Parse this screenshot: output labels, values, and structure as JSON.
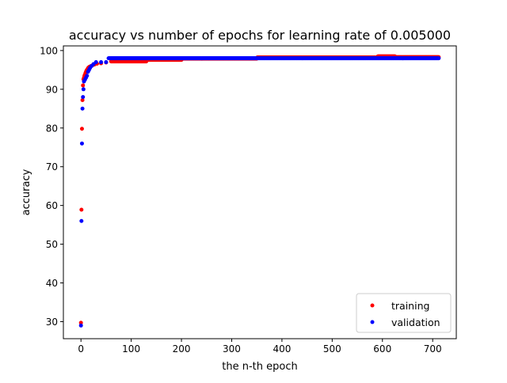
{
  "chart_data": {
    "type": "scatter",
    "title": "accuracy vs number of epochs for learning rate of 0.005000",
    "xlabel": "the n-th epoch",
    "ylabel": "accuracy",
    "xlim": [
      -35,
      747
    ],
    "ylim": [
      25.6,
      101.2
    ],
    "xticks": [
      0,
      100,
      200,
      300,
      400,
      500,
      600,
      700
    ],
    "yticks": [
      30,
      40,
      50,
      60,
      70,
      80,
      90,
      100
    ],
    "grid": false,
    "legend_position": "lower-right",
    "n_epochs": 713,
    "series": [
      {
        "name": "training",
        "color": "#ff0000",
        "marker": "dot",
        "early_points": [
          [
            0,
            29.7
          ],
          [
            1,
            58.9
          ],
          [
            2,
            79.8
          ],
          [
            3,
            87.2
          ],
          [
            4,
            91.0
          ],
          [
            5,
            92.6
          ],
          [
            6,
            93.0
          ],
          [
            7,
            93.5
          ],
          [
            8,
            93.8
          ],
          [
            9,
            94.2
          ],
          [
            10,
            94.5
          ],
          [
            11,
            94.8
          ],
          [
            12,
            95.0
          ],
          [
            13,
            95.2
          ],
          [
            14,
            95.4
          ],
          [
            15,
            95.6
          ],
          [
            17,
            95.8
          ],
          [
            20,
            96.0
          ],
          [
            23,
            96.2
          ],
          [
            27,
            96.4
          ],
          [
            32,
            96.6
          ],
          [
            40,
            96.7
          ],
          [
            50,
            96.9
          ]
        ],
        "plateaus": [
          [
            60,
            130,
            97.2
          ],
          [
            131,
            200,
            97.6
          ],
          [
            201,
            350,
            97.9
          ],
          [
            351,
            590,
            98.2
          ],
          [
            591,
            625,
            98.5
          ],
          [
            626,
            712,
            98.3
          ]
        ]
      },
      {
        "name": "validation",
        "color": "#0000ff",
        "marker": "dot",
        "early_points": [
          [
            0,
            29.0
          ],
          [
            1,
            56.0
          ],
          [
            2,
            76.0
          ],
          [
            3,
            85.0
          ],
          [
            4,
            88.0
          ],
          [
            5,
            90.0
          ],
          [
            6,
            92.0
          ],
          [
            8,
            92.5
          ],
          [
            10,
            93.0
          ],
          [
            12,
            93.5
          ],
          [
            14,
            94.5
          ],
          [
            16,
            95.0
          ],
          [
            18,
            95.5
          ],
          [
            21,
            96.0
          ],
          [
            25,
            96.5
          ],
          [
            30,
            97.0
          ],
          [
            40,
            97.0
          ],
          [
            50,
            97.0
          ]
        ],
        "plateaus": [
          [
            55,
            712,
            98.0
          ]
        ]
      }
    ]
  }
}
